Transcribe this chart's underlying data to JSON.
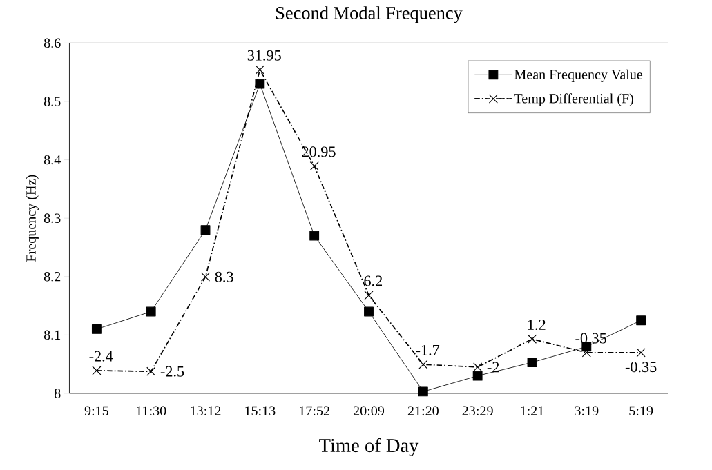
{
  "chart_data": {
    "type": "line",
    "title": "Second Modal Frequency",
    "xlabel": "Time of Day",
    "ylabel": "Frequency (Hz)",
    "categories": [
      "9:15",
      "11:30",
      "13:12",
      "15:13",
      "17:52",
      "20:09",
      "21:20",
      "23:29",
      "1:21",
      "3:19",
      "5:19"
    ],
    "series": [
      {
        "name": "Mean Frequency Value",
        "color": "#000000",
        "marker": "square",
        "line_style": "solid",
        "values": [
          8.11,
          8.14,
          8.28,
          8.53,
          8.27,
          8.14,
          8.003,
          8.03,
          8.053,
          8.08,
          8.125
        ]
      },
      {
        "name": "Temp Differential (F)",
        "color": "#000000",
        "marker": "cross",
        "line_style": "dashed",
        "axis": "y2",
        "values": [
          -2.4,
          -2.5,
          8.3,
          31.95,
          20.95,
          6.2,
          -1.7,
          -2,
          1.2,
          -0.35,
          -0.35
        ],
        "value_labels": [
          "-2.4",
          "-2.5",
          "8.3",
          "31.95",
          "20.95",
          "6.2",
          "-1.7",
          "-2",
          "1.2",
          "-0.35",
          "-0.35"
        ]
      }
    ],
    "ylim": [
      8,
      8.6
    ],
    "yticks": [
      8,
      8.1,
      8.2,
      8.3,
      8.4,
      8.5,
      8.6
    ],
    "y2lim": [
      -5,
      35
    ],
    "legend": "top right"
  }
}
